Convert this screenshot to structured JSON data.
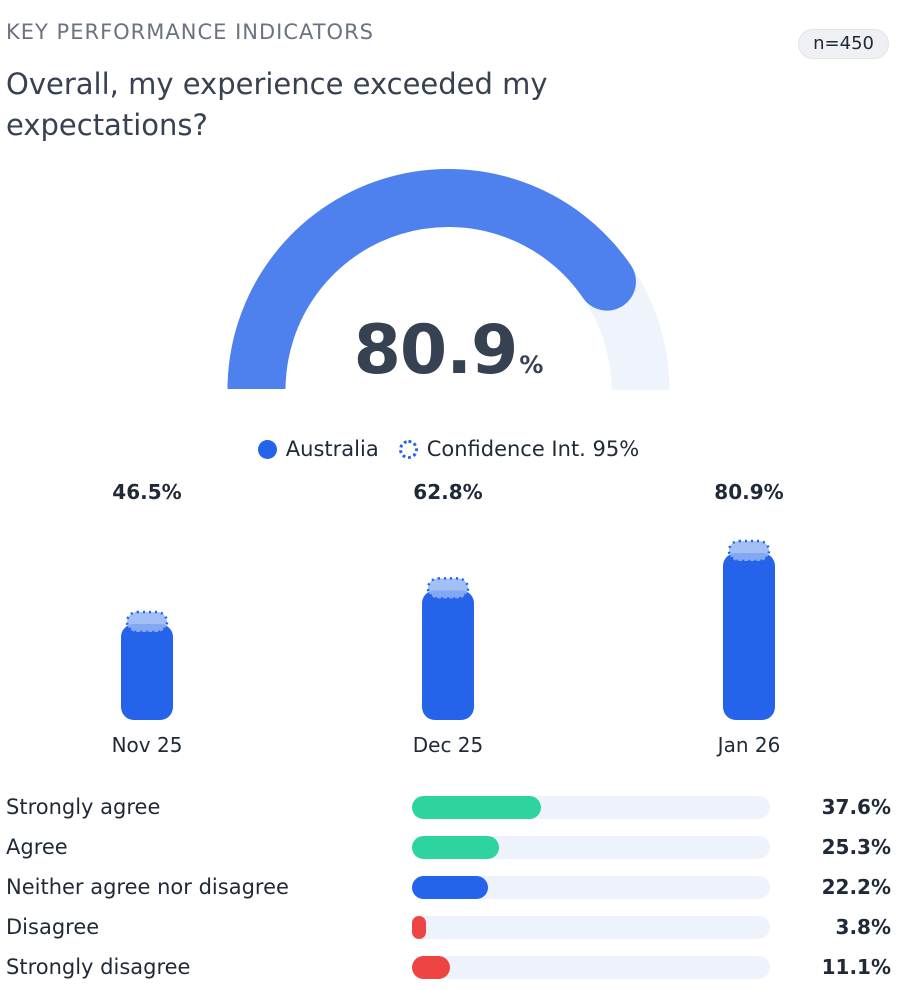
{
  "header": {
    "kicker": "KEY PERFORMANCE INDICATORS",
    "sample_badge": "n=450",
    "question": "Overall, my experience exceeded my expectations?"
  },
  "gauge": {
    "value": 80.9,
    "value_text": "80.9",
    "unit": "%",
    "color": "#4e81ee",
    "track_color": "#eef3fc"
  },
  "legend": {
    "series_label": "Australia",
    "ci_label": "Confidence Int. 95%",
    "series_color": "#2563eb"
  },
  "chart_data": [
    {
      "type": "bar",
      "categories": [
        "Nov 25",
        "Dec 25",
        "Jan 26"
      ],
      "series": [
        {
          "name": "Australia",
          "values": [
            46.5,
            62.8,
            80.9
          ]
        }
      ],
      "value_labels": [
        "46.5%",
        "62.8%",
        "80.9%"
      ],
      "ylim": [
        0,
        100
      ],
      "color": "#2563eb",
      "grid": false
    },
    {
      "type": "bar",
      "orientation": "horizontal",
      "categories": [
        "Strongly agree",
        "Agree",
        "Neither agree nor disagree",
        "Disagree",
        "Strongly disagree"
      ],
      "values": [
        37.6,
        25.3,
        22.2,
        3.8,
        11.1
      ],
      "value_labels": [
        "37.6%",
        "25.3%",
        "22.2%",
        "3.8%",
        "11.1%"
      ],
      "colors": [
        "#2dd4a0",
        "#2dd4a0",
        "#2563eb",
        "#ef4444",
        "#ef4444"
      ],
      "track_color": "#eef3fb",
      "xlim": [
        0,
        100
      ]
    }
  ]
}
